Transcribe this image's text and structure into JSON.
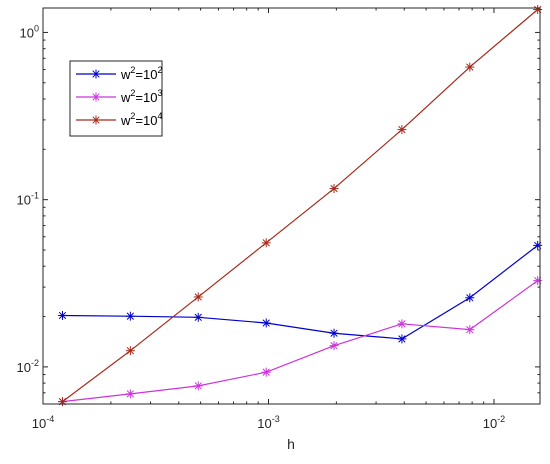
{
  "chart_data": {
    "type": "line",
    "xscale": "log",
    "yscale": "log",
    "xlabel": "h",
    "ylabel": "",
    "xlim": [
      0.0001,
      0.016
    ],
    "ylim": [
      0.006,
      1.4
    ],
    "x_ticks": [
      {
        "value": 0.0001,
        "base": "10",
        "exp": "-4"
      },
      {
        "value": 0.001,
        "base": "10",
        "exp": "-3"
      },
      {
        "value": 0.01,
        "base": "10",
        "exp": "-2"
      }
    ],
    "y_ticks": [
      {
        "value": 0.01,
        "base": "10",
        "exp": "-2"
      },
      {
        "value": 0.1,
        "base": "10",
        "exp": "-1"
      },
      {
        "value": 1,
        "base": "10",
        "exp": "0"
      }
    ],
    "grid": false,
    "legend_position": "top-left",
    "x": [
      0.000122,
      0.000244,
      0.000488,
      0.000977,
      0.001953,
      0.003906,
      0.007813,
      0.015625
    ],
    "series": [
      {
        "legend_base": "w",
        "legend_sup1": "2",
        "legend_mid": "=10",
        "legend_sup2": "2",
        "color": "#0000cc",
        "marker": "asterisk",
        "values": [
          0.0203,
          0.0201,
          0.0198,
          0.0183,
          0.0159,
          0.0147,
          0.0259,
          0.0533
        ]
      },
      {
        "legend_base": "w",
        "legend_sup1": "2",
        "legend_mid": "=10",
        "legend_sup2": "3",
        "color": "#cc33dd",
        "marker": "asterisk",
        "values": [
          0.0062,
          0.0069,
          0.0077,
          0.0093,
          0.0134,
          0.0181,
          0.0167,
          0.0328
        ]
      },
      {
        "legend_base": "w",
        "legend_sup1": "2",
        "legend_mid": "=10",
        "legend_sup2": "4",
        "color": "#a52a1a",
        "marker": "asterisk",
        "values": [
          0.0062,
          0.0125,
          0.0262,
          0.0552,
          0.1165,
          0.2625,
          0.6209,
          1.371
        ]
      }
    ]
  }
}
